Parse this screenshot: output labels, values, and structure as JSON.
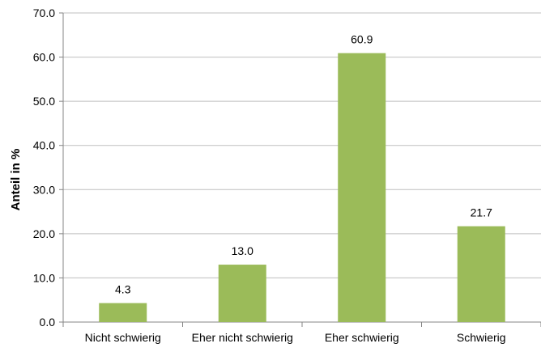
{
  "chart_data": {
    "type": "bar",
    "title": "",
    "xlabel": "",
    "ylabel": "Anteil in %",
    "categories": [
      "Nicht schwierig",
      "Eher nicht schwierig",
      "Eher schwierig",
      "Schwierig"
    ],
    "values": [
      4.3,
      13.0,
      60.9,
      21.7
    ],
    "value_labels": [
      "4.3",
      "13.0",
      "60.9",
      "21.7"
    ],
    "ylim": [
      0,
      70
    ],
    "yticks": [
      "0.0",
      "10.0",
      "20.0",
      "30.0",
      "40.0",
      "50.0",
      "60.0",
      "70.0"
    ],
    "grid": true,
    "legend": "none",
    "colors": {
      "bar": "#9bbb59",
      "grid": "#bfbfbf",
      "axis": "#868686",
      "text": "#000000"
    }
  }
}
